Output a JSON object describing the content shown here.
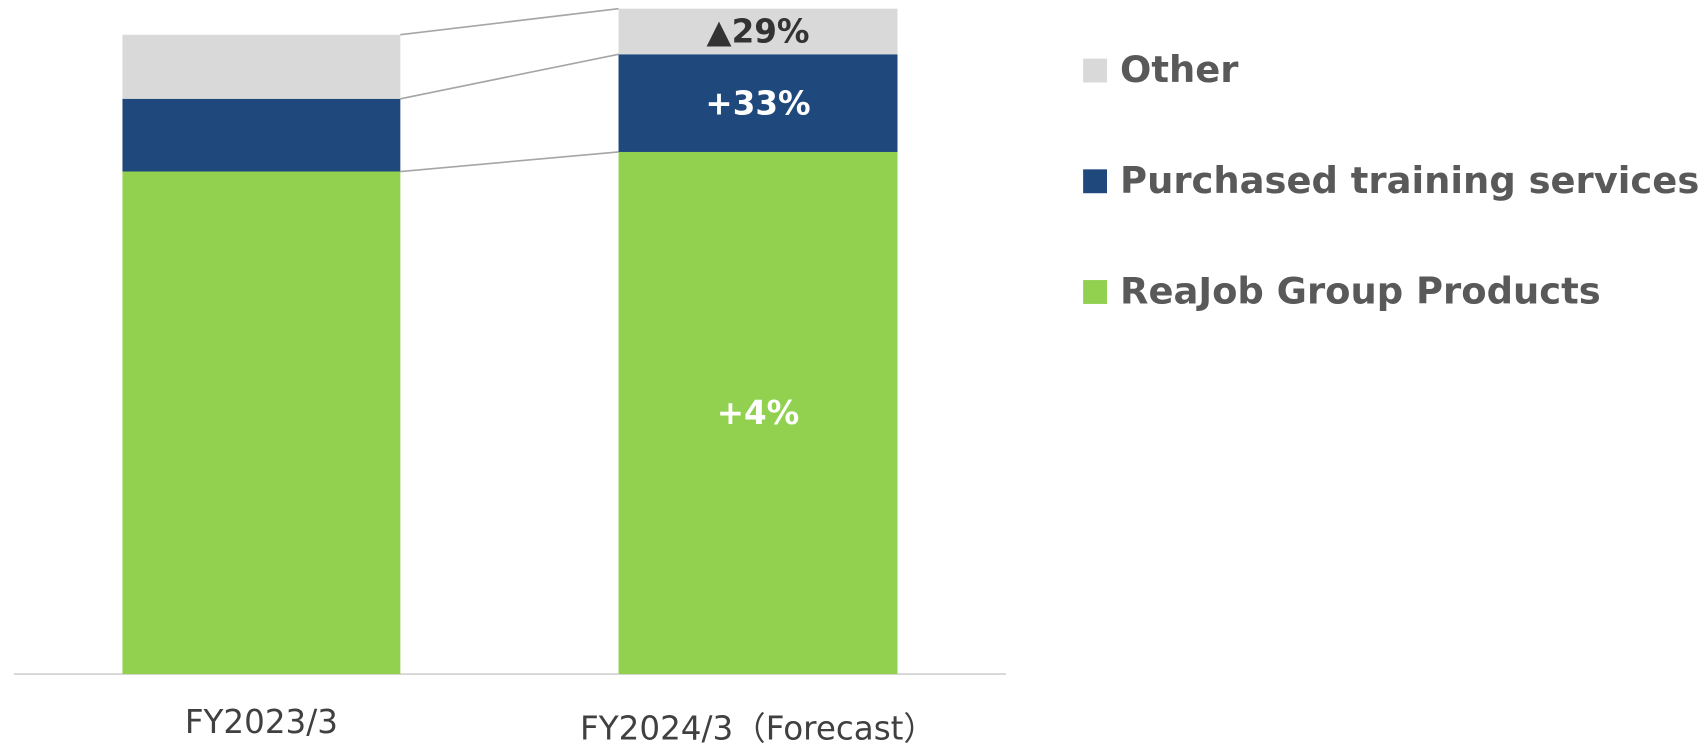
{
  "chart_data": {
    "type": "stacked_bar",
    "categories": [
      "FY2023/3",
      "FY2024/3（Forecast）"
    ],
    "series": [
      {
        "name": "ReaJob Group Products",
        "color": "#92d050",
        "values": [
          463,
          481
        ],
        "labels": [
          null,
          "+4%"
        ]
      },
      {
        "name": "Purchased training services",
        "color": "#1f497d",
        "values": [
          67,
          90
        ],
        "labels": [
          null,
          "+33%"
        ]
      },
      {
        "name": "Other",
        "color": "#d9d9d9",
        "values": [
          59,
          42
        ],
        "labels": [
          null,
          "▲29%"
        ]
      }
    ],
    "ylim": [
      0,
      621
    ],
    "legend": "right"
  }
}
